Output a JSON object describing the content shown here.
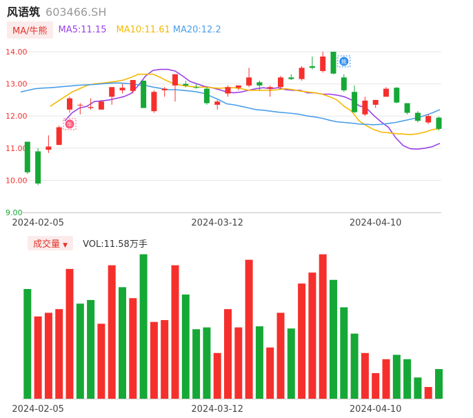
{
  "header": {
    "name": "风语筑",
    "code": "603466.SH"
  },
  "ma_legend": {
    "selector_label": "MA/牛熊",
    "items": [
      {
        "label": "MA5:11.15",
        "color": "#9b3fe8"
      },
      {
        "label": "MA10:11.61",
        "color": "#f5b800"
      },
      {
        "label": "MA20:12.2",
        "color": "#4a9eea"
      }
    ]
  },
  "volume_legend": {
    "selector_label": "成交量",
    "value_label": "VOL:11.58万手"
  },
  "markers": {
    "bull": "牛",
    "bear": "熊"
  },
  "colors": {
    "up": "#f5302c",
    "down": "#16a837",
    "grid": "#e6e6e6",
    "axis_text": "#444444"
  },
  "chart_data": [
    {
      "type": "candlestick",
      "y_ticks": [
        "9.00",
        "10.00",
        "11.00",
        "12.00",
        "13.00",
        "14.00"
      ],
      "ylim": [
        9.0,
        14.0
      ],
      "x_ticks": [
        {
          "index": 1,
          "label": "2024-02-05"
        },
        {
          "index": 18,
          "label": "2024-03-12"
        },
        {
          "index": 33,
          "label": "2024-04-10"
        }
      ],
      "candles": [
        {
          "o": 11.2,
          "h": 11.2,
          "l": 10.2,
          "c": 10.25
        },
        {
          "o": 10.9,
          "h": 11.0,
          "l": 9.85,
          "c": 9.9
        },
        {
          "o": 10.95,
          "h": 11.4,
          "l": 10.85,
          "c": 11.05
        },
        {
          "o": 11.1,
          "h": 11.7,
          "l": 11.1,
          "c": 11.65
        },
        {
          "o": 12.2,
          "h": 12.6,
          "l": 12.1,
          "c": 12.55
        },
        {
          "o": 12.35,
          "h": 12.4,
          "l": 12.05,
          "c": 12.35
        },
        {
          "o": 12.25,
          "h": 12.55,
          "l": 12.2,
          "c": 12.28
        },
        {
          "o": 12.2,
          "h": 12.5,
          "l": 12.2,
          "c": 12.45
        },
        {
          "o": 12.6,
          "h": 12.9,
          "l": 12.35,
          "c": 12.9
        },
        {
          "o": 12.8,
          "h": 13.0,
          "l": 12.7,
          "c": 12.88
        },
        {
          "o": 12.78,
          "h": 13.1,
          "l": 12.7,
          "c": 13.12
        },
        {
          "o": 13.1,
          "h": 13.1,
          "l": 12.25,
          "c": 12.25
        },
        {
          "o": 12.15,
          "h": 12.8,
          "l": 12.1,
          "c": 12.75
        },
        {
          "o": 12.8,
          "h": 12.9,
          "l": 12.6,
          "c": 12.85
        },
        {
          "o": 12.95,
          "h": 13.3,
          "l": 12.45,
          "c": 13.3
        },
        {
          "o": 13.0,
          "h": 13.1,
          "l": 12.9,
          "c": 12.95
        },
        {
          "o": 12.9,
          "h": 13.0,
          "l": 12.85,
          "c": 12.88
        },
        {
          "o": 12.85,
          "h": 12.9,
          "l": 12.35,
          "c": 12.4
        },
        {
          "o": 12.35,
          "h": 12.5,
          "l": 12.2,
          "c": 12.45
        },
        {
          "o": 12.7,
          "h": 12.95,
          "l": 12.6,
          "c": 12.9
        },
        {
          "o": 12.88,
          "h": 12.95,
          "l": 12.8,
          "c": 12.95
        },
        {
          "o": 12.95,
          "h": 13.5,
          "l": 12.9,
          "c": 13.2
        },
        {
          "o": 13.05,
          "h": 13.1,
          "l": 12.8,
          "c": 12.95
        },
        {
          "o": 12.85,
          "h": 12.95,
          "l": 12.6,
          "c": 12.9
        },
        {
          "o": 12.9,
          "h": 13.25,
          "l": 12.85,
          "c": 13.2
        },
        {
          "o": 13.2,
          "h": 13.3,
          "l": 13.12,
          "c": 13.15
        },
        {
          "o": 13.15,
          "h": 13.55,
          "l": 13.1,
          "c": 13.5
        },
        {
          "o": 13.55,
          "h": 13.85,
          "l": 13.45,
          "c": 13.5
        },
        {
          "o": 13.4,
          "h": 14.0,
          "l": 13.35,
          "c": 13.85
        },
        {
          "o": 14.0,
          "h": 14.0,
          "l": 13.3,
          "c": 13.32
        },
        {
          "o": 13.2,
          "h": 13.3,
          "l": 12.75,
          "c": 12.8
        },
        {
          "o": 12.75,
          "h": 12.95,
          "l": 12.1,
          "c": 12.12
        },
        {
          "o": 12.05,
          "h": 12.6,
          "l": 12.0,
          "c": 12.48
        },
        {
          "o": 12.35,
          "h": 12.5,
          "l": 12.25,
          "c": 12.5
        },
        {
          "o": 12.6,
          "h": 12.9,
          "l": 12.6,
          "c": 12.85
        },
        {
          "o": 12.88,
          "h": 12.9,
          "l": 12.4,
          "c": 12.42
        },
        {
          "o": 12.4,
          "h": 12.4,
          "l": 12.05,
          "c": 12.1
        },
        {
          "o": 12.1,
          "h": 12.15,
          "l": 11.8,
          "c": 11.85
        },
        {
          "o": 11.8,
          "h": 12.05,
          "l": 11.75,
          "c": 12.0
        },
        {
          "o": 11.95,
          "h": 11.98,
          "l": 11.55,
          "c": 11.6
        }
      ],
      "series": [
        {
          "name": "MA5",
          "color": "#9b3fe8",
          "values": [
            11.85,
            12.1,
            12.25,
            12.3,
            12.45,
            12.47,
            12.5,
            12.55,
            12.6,
            12.7,
            12.95,
            13.25,
            13.42,
            13.45,
            13.45,
            13.4,
            13.25,
            13.08,
            13.0,
            12.92,
            12.88,
            12.82,
            12.75,
            12.72,
            12.75,
            12.8,
            12.85,
            12.88,
            12.85,
            12.88,
            12.82,
            12.8,
            12.8,
            12.72,
            12.72,
            12.68,
            12.68,
            12.65,
            12.6,
            12.5,
            12.32,
            12.25,
            12.02,
            11.82,
            11.65,
            11.32,
            11.08,
            10.98,
            10.97,
            11.0,
            11.05,
            11.15
          ]
        },
        {
          "name": "MA10",
          "color": "#f5b800",
          "values": [
            12.3,
            12.45,
            12.6,
            12.75,
            12.85,
            12.95,
            13.0,
            13.02,
            13.05,
            13.08,
            13.12,
            13.2,
            13.3,
            13.3,
            13.3,
            13.2,
            13.08,
            13.0,
            12.95,
            12.92,
            12.9,
            12.9,
            12.88,
            12.86,
            12.88,
            12.88,
            12.85,
            12.8,
            12.8,
            12.8,
            12.8,
            12.82,
            12.85,
            12.82,
            12.78,
            12.75,
            12.72,
            12.68,
            12.6,
            12.5,
            12.3,
            12.15,
            11.85,
            11.7,
            11.58,
            11.5,
            11.48,
            11.45,
            11.44,
            11.42,
            11.45,
            11.5,
            11.58,
            11.61
          ]
        },
        {
          "name": "MA20",
          "color": "#4a9eea",
          "values": [
            12.75,
            12.8,
            12.85,
            12.87,
            12.88,
            12.9,
            12.92,
            12.94,
            12.96,
            12.97,
            12.98,
            13.0,
            13.02,
            13.03,
            13.02,
            13.0,
            12.97,
            12.95,
            12.9,
            12.86,
            12.82,
            12.82,
            12.8,
            12.78,
            12.75,
            12.7,
            12.6,
            12.5,
            12.38,
            12.35,
            12.3,
            12.25,
            12.2,
            12.18,
            12.15,
            12.12,
            12.1,
            12.08,
            12.05,
            12.0,
            11.97,
            11.93,
            11.87,
            11.82,
            11.8,
            11.78,
            11.75,
            11.74,
            11.73,
            11.74,
            11.77,
            11.8,
            11.85,
            11.9,
            11.95,
            12.02,
            12.1,
            12.2
          ]
        }
      ],
      "annotations": [
        {
          "label": "牛",
          "index": 4
        },
        {
          "label": "熊",
          "index": 30
        }
      ]
    },
    {
      "type": "bar",
      "title": "成交量",
      "x_ticks": [
        {
          "index": 1,
          "label": "2024-02-05"
        },
        {
          "index": 18,
          "label": "2024-03-12"
        },
        {
          "index": 33,
          "label": "2024-04-10"
        }
      ],
      "values": [
        30,
        22.5,
        23.5,
        24.5,
        35.5,
        26,
        27,
        20.5,
        36.5,
        30.5,
        27.5,
        39.5,
        21,
        21.5,
        36.5,
        28.5,
        19,
        19.5,
        12.5,
        24.5,
        19.5,
        38,
        19.8,
        14,
        23.5,
        19.2,
        31.5,
        34.5,
        39.5,
        32.5,
        25,
        17.8,
        12.5,
        7,
        10.8,
        12,
        10.8,
        5.8,
        3.2,
        8.1
      ],
      "directions": [
        "down",
        "up",
        "up",
        "up",
        "up",
        "down",
        "down",
        "up",
        "up",
        "down",
        "up",
        "down",
        "up",
        "up",
        "up",
        "down",
        "down",
        "down",
        "up",
        "up",
        "up",
        "up",
        "down",
        "up",
        "up",
        "down",
        "up",
        "up",
        "up",
        "down",
        "down",
        "down",
        "up",
        "up",
        "up",
        "down",
        "down",
        "down",
        "up",
        "down"
      ]
    }
  ]
}
